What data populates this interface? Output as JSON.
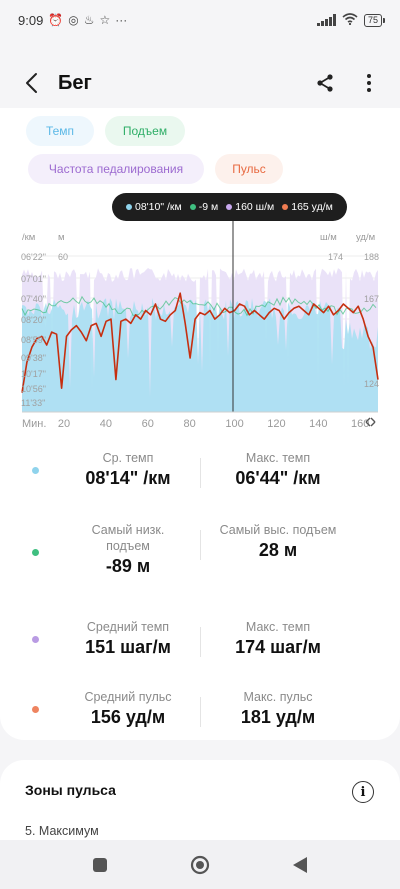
{
  "status_bar": {
    "time": "9:09",
    "battery": "75"
  },
  "header": {
    "title": "Бег"
  },
  "chips": [
    {
      "label": "Темп",
      "bg": "#eef7fd",
      "fg": "#5bb8e6"
    },
    {
      "label": "Подъем",
      "bg": "#eaf8ef",
      "fg": "#2fae67"
    },
    {
      "label": "Частота педалирования",
      "bg": "#f4effb",
      "fg": "#9c6ad0"
    },
    {
      "label": "Пульс",
      "bg": "#fdf1ec",
      "fg": "#e86a41"
    }
  ],
  "chart_data": {
    "type": "line",
    "x_axis_label": "Мин.",
    "x_ticks": [
      "20",
      "40",
      "60",
      "80",
      "100",
      "120",
      "140",
      "160"
    ],
    "x_range": [
      0,
      170
    ],
    "left_units": [
      "/км",
      "м"
    ],
    "left_ticks_pace": [
      "06'22\"",
      "07'01\"",
      "07'40\"",
      "08'20\"",
      "08'59\"",
      "09'38\"",
      "10'17\"",
      "10'56\"",
      "11'33\""
    ],
    "left_tick_elevation": "60",
    "right_units": [
      "ш/м",
      "уд/м"
    ],
    "right_tick_cadence": "174",
    "right_ticks_hr": [
      "188",
      "167",
      "124"
    ],
    "colors": {
      "pace": "#8fd3ec",
      "elevation": "#3fbf80",
      "cadence": "#c9b4ec",
      "heart_rate": "#c62f10"
    },
    "heart_rate": [
      124,
      138,
      145,
      149,
      150,
      146,
      152,
      151,
      126,
      150,
      153,
      155,
      152,
      148,
      155,
      156,
      150,
      157,
      158,
      130,
      157,
      158,
      156,
      160,
      158,
      162,
      160,
      165,
      158,
      157,
      160,
      162,
      170,
      156,
      140,
      158,
      161,
      160,
      162,
      158,
      160,
      163,
      161,
      162,
      165,
      164,
      160,
      162,
      160,
      158,
      161,
      163,
      162,
      158,
      161,
      163,
      164,
      162,
      160,
      165,
      163,
      161,
      164,
      160,
      162,
      165,
      163,
      161,
      164,
      158,
      150,
      145,
      130
    ]
  },
  "tooltip": {
    "pace": "08'10\" /км",
    "elevation": "-9 м",
    "cadence": "160 ш/м",
    "heart_rate": "165 уд/м"
  },
  "stats": [
    {
      "color": "#8fd3ec",
      "left_label": "Ср. темп",
      "left_value": "08'14\" /км",
      "right_label": "Макс. темп",
      "right_value": "06'44\" /км"
    },
    {
      "color": "#3fbf80",
      "left_label": "Самый низк. подъем",
      "left_value": "-89 м",
      "right_label": "Самый выс. подъем",
      "right_value": "28 м"
    },
    {
      "color": "#b99be3",
      "left_label": "Средний темп",
      "left_value": "151 шаг/м",
      "right_label": "Макс. темп",
      "right_value": "174 шаг/м"
    },
    {
      "color": "#ee8460",
      "left_label": "Средний пульс",
      "left_value": "156 уд/м",
      "right_label": "Макс. пульс",
      "right_value": "181 уд/м"
    }
  ],
  "zones": {
    "title": "Зоны пульса",
    "first_item": "5. Максимум"
  }
}
